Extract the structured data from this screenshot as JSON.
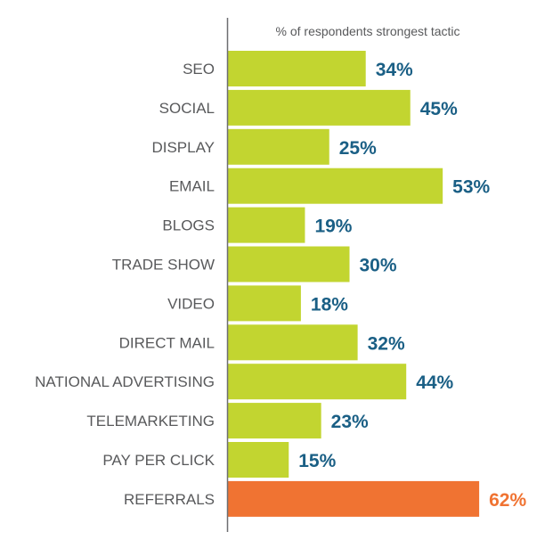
{
  "chart_data": {
    "type": "bar",
    "orientation": "horizontal",
    "title": "",
    "subtitle": "% of respondents strongest tactic",
    "categories": [
      "SEO",
      "SOCIAL",
      "DISPLAY",
      "EMAIL",
      "BLOGS",
      "TRADE SHOW",
      "VIDEO",
      "DIRECT MAIL",
      "NATIONAL ADVERTISING",
      "TELEMARKETING",
      "PAY PER CLICK",
      "REFERRALS"
    ],
    "values": [
      34,
      45,
      25,
      53,
      19,
      30,
      18,
      32,
      44,
      23,
      15,
      62
    ],
    "value_labels": [
      "34%",
      "45%",
      "25%",
      "53%",
      "19%",
      "30%",
      "18%",
      "32%",
      "44%",
      "23%",
      "15%",
      "62%"
    ],
    "unit": "%",
    "xlabel": "",
    "ylabel": "",
    "grid": false,
    "legend": "none",
    "highlight_index": 11,
    "colors": {
      "bar": "#c2d530",
      "highlight_bar": "#f07332",
      "value_label": "#1a5f85",
      "highlight_value_label": "#f07332",
      "axis": "#6d6e71"
    }
  }
}
